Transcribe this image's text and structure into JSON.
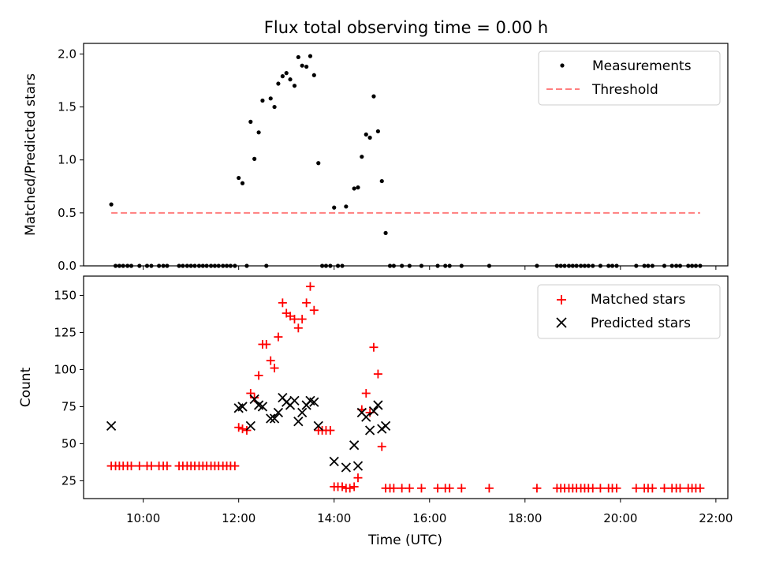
{
  "chart_data": {
    "title": "Flux total observing time = 0.00 h",
    "xlabel": "Time (UTC)",
    "x_unit": "hours (UTC)",
    "xlim": [
      8.75,
      22.25
    ],
    "x_ticks": [
      {
        "value": 10,
        "label": "10:00"
      },
      {
        "value": 12,
        "label": "12:00"
      },
      {
        "value": 14,
        "label": "14:00"
      },
      {
        "value": 16,
        "label": "16:00"
      },
      {
        "value": 18,
        "label": "18:00"
      },
      {
        "value": 20,
        "label": "20:00"
      },
      {
        "value": 22,
        "label": "22:00"
      }
    ],
    "panels": [
      {
        "type": "scatter",
        "ylabel": "Matched/Predicted stars",
        "ylim": [
          0,
          2.1
        ],
        "y_ticks": [
          "0.0",
          "0.5",
          "1.0",
          "1.5",
          "2.0"
        ],
        "legend": "top-right",
        "series": [
          {
            "name": "Measurements",
            "marker": "dot",
            "color": "#000000",
            "points": [
              [
                9.33,
                0.58
              ],
              [
                9.42,
                0
              ],
              [
                9.5,
                0
              ],
              [
                9.58,
                0
              ],
              [
                9.67,
                0
              ],
              [
                9.75,
                0
              ],
              [
                9.92,
                0
              ],
              [
                10.08,
                0
              ],
              [
                10.17,
                0
              ],
              [
                10.33,
                0
              ],
              [
                10.42,
                0
              ],
              [
                10.5,
                0
              ],
              [
                10.75,
                0
              ],
              [
                10.83,
                0
              ],
              [
                10.92,
                0
              ],
              [
                11.0,
                0
              ],
              [
                11.08,
                0
              ],
              [
                11.17,
                0
              ],
              [
                11.25,
                0
              ],
              [
                11.33,
                0
              ],
              [
                11.42,
                0
              ],
              [
                11.5,
                0
              ],
              [
                11.58,
                0
              ],
              [
                11.67,
                0
              ],
              [
                11.75,
                0
              ],
              [
                11.83,
                0
              ],
              [
                11.92,
                0
              ],
              [
                12.0,
                0.83
              ],
              [
                12.08,
                0.78
              ],
              [
                12.17,
                0
              ],
              [
                12.25,
                1.36
              ],
              [
                12.33,
                1.01
              ],
              [
                12.42,
                1.26
              ],
              [
                12.5,
                1.56
              ],
              [
                12.58,
                0
              ],
              [
                12.67,
                1.58
              ],
              [
                12.75,
                1.5
              ],
              [
                12.83,
                1.72
              ],
              [
                12.92,
                1.79
              ],
              [
                13.0,
                1.82
              ],
              [
                13.08,
                1.76
              ],
              [
                13.17,
                1.7
              ],
              [
                13.25,
                1.97
              ],
              [
                13.33,
                1.89
              ],
              [
                13.42,
                1.88
              ],
              [
                13.5,
                1.98
              ],
              [
                13.58,
                1.8
              ],
              [
                13.67,
                0.97
              ],
              [
                13.75,
                0
              ],
              [
                13.83,
                0
              ],
              [
                13.92,
                0
              ],
              [
                14.0,
                0.55
              ],
              [
                14.08,
                0
              ],
              [
                14.17,
                0
              ],
              [
                14.25,
                0.56
              ],
              [
                14.42,
                0.73
              ],
              [
                14.5,
                0.74
              ],
              [
                14.58,
                1.03
              ],
              [
                14.67,
                1.24
              ],
              [
                14.75,
                1.21
              ],
              [
                14.83,
                1.6
              ],
              [
                14.92,
                1.27
              ],
              [
                15.0,
                0.8
              ],
              [
                15.08,
                0.31
              ],
              [
                15.17,
                0
              ],
              [
                15.25,
                0
              ],
              [
                15.42,
                0
              ],
              [
                15.58,
                0
              ],
              [
                15.83,
                0
              ],
              [
                16.17,
                0
              ],
              [
                16.33,
                0
              ],
              [
                16.42,
                0
              ],
              [
                16.67,
                0
              ],
              [
                17.25,
                0
              ],
              [
                18.25,
                0
              ],
              [
                18.67,
                0
              ],
              [
                18.75,
                0
              ],
              [
                18.83,
                0
              ],
              [
                18.92,
                0
              ],
              [
                19.0,
                0
              ],
              [
                19.08,
                0
              ],
              [
                19.17,
                0
              ],
              [
                19.25,
                0
              ],
              [
                19.33,
                0
              ],
              [
                19.42,
                0
              ],
              [
                19.58,
                0
              ],
              [
                19.75,
                0
              ],
              [
                19.83,
                0
              ],
              [
                19.92,
                0
              ],
              [
                20.33,
                0
              ],
              [
                20.5,
                0
              ],
              [
                20.58,
                0
              ],
              [
                20.67,
                0
              ],
              [
                20.92,
                0
              ],
              [
                21.08,
                0
              ],
              [
                21.17,
                0
              ],
              [
                21.25,
                0
              ],
              [
                21.42,
                0
              ],
              [
                21.5,
                0
              ],
              [
                21.58,
                0
              ],
              [
                21.67,
                0
              ]
            ]
          },
          {
            "name": "Threshold",
            "marker": "dashed-line",
            "color": "#ff7f7f",
            "points": [
              [
                9.33,
                0.5
              ],
              [
                21.67,
                0.5
              ]
            ]
          }
        ]
      },
      {
        "type": "scatter",
        "ylabel": "Count",
        "ylim": [
          13,
          163
        ],
        "y_ticks": [
          "25",
          "50",
          "75",
          "100",
          "125",
          "150"
        ],
        "legend": "top-right",
        "series": [
          {
            "name": "Matched stars",
            "marker": "plus",
            "color": "#ff0000",
            "points": [
              [
                9.33,
                35
              ],
              [
                9.42,
                35
              ],
              [
                9.5,
                35
              ],
              [
                9.58,
                35
              ],
              [
                9.67,
                35
              ],
              [
                9.75,
                35
              ],
              [
                9.92,
                35
              ],
              [
                10.08,
                35
              ],
              [
                10.17,
                35
              ],
              [
                10.33,
                35
              ],
              [
                10.42,
                35
              ],
              [
                10.5,
                35
              ],
              [
                10.75,
                35
              ],
              [
                10.83,
                35
              ],
              [
                10.92,
                35
              ],
              [
                11.0,
                35
              ],
              [
                11.08,
                35
              ],
              [
                11.17,
                35
              ],
              [
                11.25,
                35
              ],
              [
                11.33,
                35
              ],
              [
                11.42,
                35
              ],
              [
                11.5,
                35
              ],
              [
                11.58,
                35
              ],
              [
                11.67,
                35
              ],
              [
                11.75,
                35
              ],
              [
                11.83,
                35
              ],
              [
                11.92,
                35
              ],
              [
                12.0,
                61
              ],
              [
                12.08,
                60
              ],
              [
                12.17,
                59
              ],
              [
                12.25,
                84
              ],
              [
                12.33,
                81
              ],
              [
                12.42,
                96
              ],
              [
                12.5,
                117
              ],
              [
                12.58,
                117
              ],
              [
                12.67,
                106
              ],
              [
                12.75,
                101
              ],
              [
                12.83,
                122
              ],
              [
                12.92,
                145
              ],
              [
                13.0,
                138
              ],
              [
                13.08,
                136
              ],
              [
                13.17,
                134
              ],
              [
                13.25,
                128
              ],
              [
                13.33,
                134
              ],
              [
                13.42,
                145
              ],
              [
                13.5,
                156
              ],
              [
                13.58,
                140
              ],
              [
                13.67,
                59
              ],
              [
                13.75,
                59
              ],
              [
                13.83,
                59
              ],
              [
                13.92,
                59
              ],
              [
                14.0,
                21
              ],
              [
                14.08,
                21
              ],
              [
                14.17,
                21
              ],
              [
                14.25,
                20
              ],
              [
                14.33,
                20
              ],
              [
                14.42,
                21
              ],
              [
                14.5,
                27
              ],
              [
                14.58,
                73
              ],
              [
                14.67,
                84
              ],
              [
                14.75,
                71
              ],
              [
                14.83,
                115
              ],
              [
                14.92,
                97
              ],
              [
                15.0,
                48
              ],
              [
                15.08,
                20
              ],
              [
                15.17,
                20
              ],
              [
                15.25,
                20
              ],
              [
                15.42,
                20
              ],
              [
                15.58,
                20
              ],
              [
                15.83,
                20
              ],
              [
                16.17,
                20
              ],
              [
                16.33,
                20
              ],
              [
                16.42,
                20
              ],
              [
                16.67,
                20
              ],
              [
                17.25,
                20
              ],
              [
                18.25,
                20
              ],
              [
                18.67,
                20
              ],
              [
                18.75,
                20
              ],
              [
                18.83,
                20
              ],
              [
                18.92,
                20
              ],
              [
                19.0,
                20
              ],
              [
                19.08,
                20
              ],
              [
                19.17,
                20
              ],
              [
                19.25,
                20
              ],
              [
                19.33,
                20
              ],
              [
                19.42,
                20
              ],
              [
                19.58,
                20
              ],
              [
                19.75,
                20
              ],
              [
                19.83,
                20
              ],
              [
                19.92,
                20
              ],
              [
                20.33,
                20
              ],
              [
                20.5,
                20
              ],
              [
                20.58,
                20
              ],
              [
                20.67,
                20
              ],
              [
                20.92,
                20
              ],
              [
                21.08,
                20
              ],
              [
                21.17,
                20
              ],
              [
                21.25,
                20
              ],
              [
                21.42,
                20
              ],
              [
                21.5,
                20
              ],
              [
                21.58,
                20
              ],
              [
                21.67,
                20
              ]
            ]
          },
          {
            "name": "Predicted stars",
            "marker": "x",
            "color": "#000000",
            "points": [
              [
                9.33,
                62
              ],
              [
                12.0,
                74
              ],
              [
                12.08,
                75
              ],
              [
                12.25,
                62
              ],
              [
                12.33,
                80
              ],
              [
                12.42,
                76
              ],
              [
                12.5,
                75
              ],
              [
                12.67,
                67
              ],
              [
                12.75,
                67
              ],
              [
                12.83,
                71
              ],
              [
                12.92,
                81
              ],
              [
                13.0,
                78
              ],
              [
                13.08,
                76
              ],
              [
                13.17,
                79
              ],
              [
                13.25,
                65
              ],
              [
                13.33,
                71
              ],
              [
                13.42,
                76
              ],
              [
                13.5,
                79
              ],
              [
                13.58,
                78
              ],
              [
                13.67,
                62
              ],
              [
                14.0,
                38
              ],
              [
                14.25,
                34
              ],
              [
                14.42,
                49
              ],
              [
                14.5,
                35
              ],
              [
                14.58,
                71
              ],
              [
                14.67,
                68
              ],
              [
                14.75,
                59
              ],
              [
                14.83,
                72
              ],
              [
                14.92,
                76
              ],
              [
                15.0,
                60
              ],
              [
                15.08,
                62
              ]
            ]
          }
        ]
      }
    ]
  }
}
